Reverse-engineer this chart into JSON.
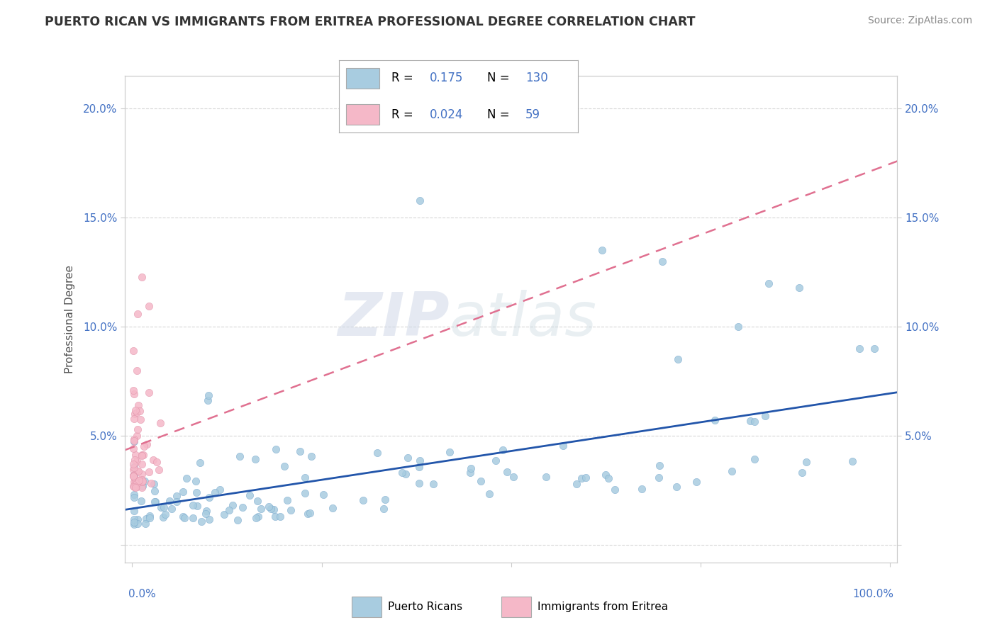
{
  "title": "PUERTO RICAN VS IMMIGRANTS FROM ERITREA PROFESSIONAL DEGREE CORRELATION CHART",
  "source": "Source: ZipAtlas.com",
  "ylabel": "Professional Degree",
  "legend_pr": {
    "R": "0.175",
    "N": "130",
    "label": "Puerto Ricans"
  },
  "legend_er": {
    "R": "0.024",
    "N": "59",
    "label": "Immigrants from Eritrea"
  },
  "watermark_zip": "ZIP",
  "watermark_atlas": "atlas",
  "pr_color": "#a8cce0",
  "er_color": "#f5b8c8",
  "pr_line_color": "#2255aa",
  "er_line_color": "#e07090",
  "background": "#ffffff",
  "grid_color": "#cccccc",
  "title_color": "#333333",
  "axis_label_color": "#4472c4",
  "pr_R": 0.175,
  "er_R": 0.024,
  "y_ticks": [
    0.0,
    0.05,
    0.1,
    0.15,
    0.2
  ],
  "ylim_min": -0.008,
  "ylim_max": 0.215,
  "xlim_min": -0.01,
  "xlim_max": 1.01
}
